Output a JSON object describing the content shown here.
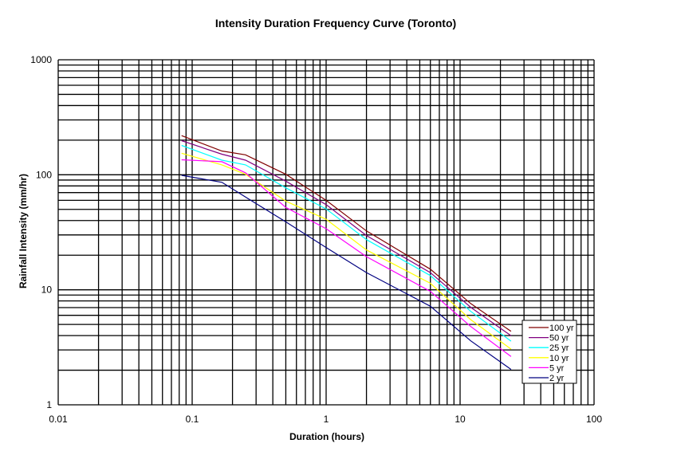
{
  "chart_data": {
    "type": "line",
    "title": "Intensity Duration Frequency Curve (Toronto)",
    "xlabel": "Duration (hours)",
    "ylabel": "Rainfall Intensity (mm/hr)",
    "xscale": "log",
    "yscale": "log",
    "xlim": [
      0.01,
      100
    ],
    "ylim": [
      1,
      1000
    ],
    "grid": true,
    "legend_position": "bottom-right",
    "x_tick_labels": [
      "0.01",
      "0.1",
      "1",
      "10",
      "100"
    ],
    "y_tick_labels": [
      "1",
      "10",
      "100",
      "1000"
    ],
    "x": [
      0.0833,
      0.1667,
      0.25,
      0.5,
      1,
      2,
      6,
      12,
      24
    ],
    "series": [
      {
        "name": "100 yr",
        "color": "#800000",
        "values": [
          219,
          161,
          149,
          101,
          60,
          32.5,
          15.1,
          7.6,
          4.35
        ]
      },
      {
        "name": "50 yr",
        "color": "#800080",
        "values": [
          198,
          151,
          134,
          88,
          55,
          29.6,
          14.1,
          7.05,
          3.99
        ]
      },
      {
        "name": "25 yr",
        "color": "#00ffff",
        "values": [
          180,
          134,
          122,
          77,
          50.5,
          27.3,
          13.3,
          6.5,
          3.58
        ]
      },
      {
        "name": "10 yr",
        "color": "#ffff00",
        "values": [
          154,
          122,
          101,
          59,
          41,
          22.2,
          11.4,
          5.5,
          3.05
        ]
      },
      {
        "name": "5 yr",
        "color": "#ff00ff",
        "values": [
          135,
          130,
          104,
          52,
          34,
          19.4,
          9.7,
          4.8,
          2.63
        ]
      },
      {
        "name": "2 yr",
        "color": "#000080",
        "values": [
          99,
          86,
          64,
          39,
          23.3,
          14.1,
          7.2,
          3.6,
          2.03
        ]
      }
    ]
  }
}
